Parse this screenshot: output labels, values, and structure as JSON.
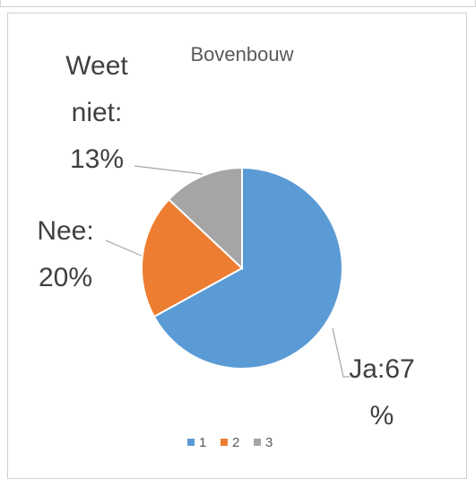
{
  "chart_data": {
    "type": "pie",
    "title": "Bovenbouw",
    "categories": [
      "1",
      "2",
      "3"
    ],
    "values": [
      67,
      20,
      13
    ],
    "value_labels": [
      "Ja:67%",
      "Nee: 20%",
      "Weet niet: 13%"
    ],
    "colors": [
      "#5b9bd5",
      "#ed7d31",
      "#a5a5a5"
    ],
    "legend": "bottom"
  }
}
